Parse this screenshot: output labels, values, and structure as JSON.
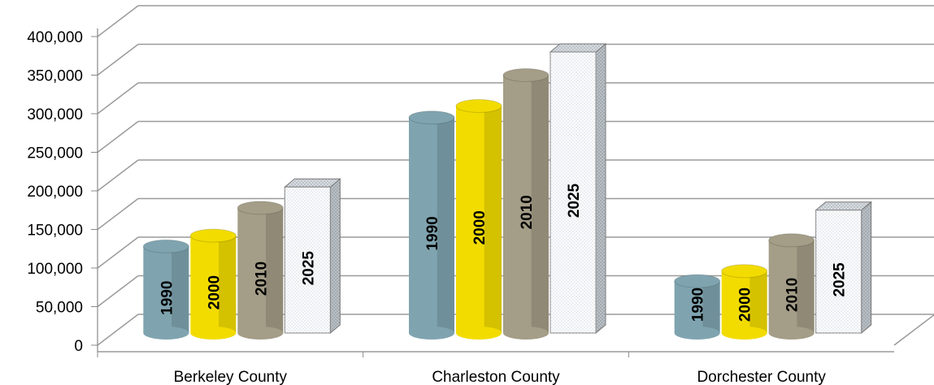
{
  "chart_data": {
    "type": "bar",
    "title": "",
    "xlabel": "",
    "ylabel": "",
    "ylim": [
      0,
      400000
    ],
    "yticks": [
      "0",
      "50,000",
      "100,000",
      "150,000",
      "200,000",
      "250,000",
      "300,000",
      "350,000",
      "400,000"
    ],
    "grid": true,
    "categories": [
      "Berkeley County",
      "Charleston County",
      "Dorchester County"
    ],
    "series": [
      {
        "name": "1990",
        "values": [
          128000,
          295000,
          83000
        ],
        "color": "#7fa4b0"
      },
      {
        "name": "2000",
        "values": [
          142000,
          310000,
          96000
        ],
        "color": "#f2dc00"
      },
      {
        "name": "2010",
        "values": [
          178000,
          350000,
          136000
        ],
        "color": "#a49d87"
      },
      {
        "name": "2025",
        "values": [
          205000,
          380000,
          175000
        ],
        "color": "#f4f6f8"
      }
    ]
  }
}
